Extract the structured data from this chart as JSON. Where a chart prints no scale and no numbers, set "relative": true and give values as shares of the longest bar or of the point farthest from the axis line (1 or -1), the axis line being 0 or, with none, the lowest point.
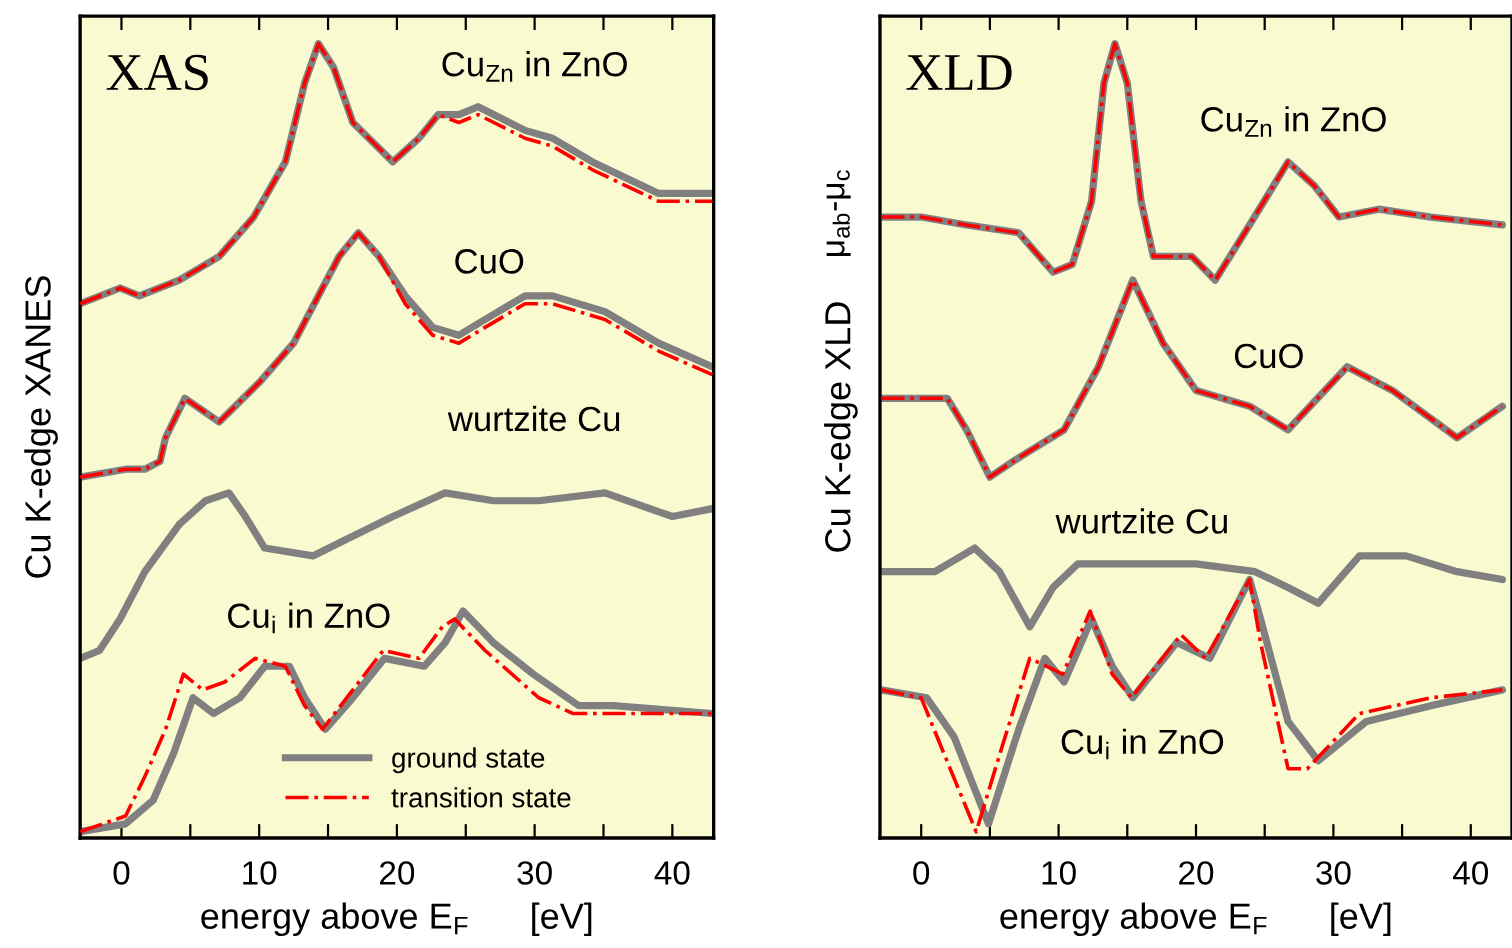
{
  "chart_data": [
    {
      "type": "line",
      "relative": true,
      "xlabel": "energy above E$_{F}$      [eV]",
      "ylabel": "Cu K-edge XANES",
      "xlim": [
        -3,
        43
      ],
      "xticks": [
        0,
        {
          "value": 5,
          "label": null
        },
        10,
        {
          "value": 15,
          "label": null
        },
        20,
        {
          "value": 25,
          "label": null
        },
        30,
        {
          "value": 35,
          "label": null
        },
        40
      ],
      "grid": false,
      "legend": "bottom",
      "annotations": [
        "XAS",
        "Cu$_{Zn}$ in ZnO",
        "CuO",
        "wurtzite Cu",
        "Cu$_{i}$ in ZnO"
      ],
      "series": [
        {
          "color": "#808080",
          "line_style": "solid",
          "x": [
            -3.0,
            -0.1,
            1.3,
            4.2,
            7.1,
            9.6,
            11.9,
            13.3,
            14.3,
            15.4,
            16.8,
            19.7,
            21.6,
            23.0,
            24.5,
            25.9,
            29.3,
            31.3,
            34.2,
            39.0,
            42.9
          ],
          "values": [
            0.67,
            0.69,
            0.68,
            0.7,
            0.73,
            0.78,
            0.85,
            0.95,
            1.0,
            0.97,
            0.9,
            0.85,
            0.88,
            0.91,
            0.91,
            0.92,
            0.89,
            0.88,
            0.85,
            0.81,
            0.81
          ]
        },
        {
          "color": "#ff0000",
          "line_style": "dashdot",
          "x": [
            -3.0,
            -0.1,
            1.3,
            4.2,
            7.1,
            9.6,
            11.9,
            13.3,
            14.3,
            15.4,
            16.8,
            19.7,
            21.6,
            23.0,
            24.5,
            25.9,
            29.3,
            31.3,
            34.2,
            39.0,
            42.9
          ],
          "values": [
            0.67,
            0.69,
            0.68,
            0.7,
            0.73,
            0.78,
            0.85,
            0.95,
            1.0,
            0.97,
            0.9,
            0.85,
            0.88,
            0.91,
            0.9,
            0.91,
            0.88,
            0.87,
            0.84,
            0.8,
            0.8
          ]
        },
        {
          "color": "#808080",
          "line_style": "solid",
          "x": [
            -3.0,
            0.3,
            1.7,
            2.8,
            3.2,
            4.6,
            7.1,
            10.0,
            12.5,
            14.3,
            15.8,
            17.2,
            18.7,
            20.6,
            22.6,
            24.5,
            26.4,
            29.3,
            31.3,
            35.1,
            39.0,
            42.9
          ],
          "values": [
            0.45,
            0.46,
            0.46,
            0.47,
            0.5,
            0.55,
            0.52,
            0.57,
            0.62,
            0.68,
            0.73,
            0.76,
            0.73,
            0.68,
            0.64,
            0.63,
            0.65,
            0.68,
            0.68,
            0.66,
            0.62,
            0.59
          ]
        },
        {
          "color": "#ff0000",
          "line_style": "dashdot",
          "x": [
            -3.0,
            0.3,
            1.7,
            2.8,
            3.2,
            4.6,
            7.1,
            10.0,
            12.5,
            14.3,
            15.8,
            17.2,
            18.7,
            20.6,
            22.6,
            24.5,
            26.4,
            29.3,
            31.3,
            35.1,
            39.0,
            42.9
          ],
          "values": [
            0.45,
            0.46,
            0.46,
            0.47,
            0.5,
            0.55,
            0.52,
            0.57,
            0.62,
            0.68,
            0.73,
            0.76,
            0.73,
            0.67,
            0.63,
            0.62,
            0.64,
            0.67,
            0.67,
            0.65,
            0.61,
            0.58
          ]
        },
        {
          "color": "#808080",
          "line_style": "solid",
          "x": [
            -3.0,
            -1.6,
            -0.1,
            1.7,
            4.2,
            6.1,
            7.8,
            9.0,
            10.4,
            13.9,
            16.2,
            19.7,
            23.5,
            27.0,
            30.3,
            35.1,
            40.0,
            42.9
          ],
          "values": [
            0.22,
            0.23,
            0.27,
            0.33,
            0.39,
            0.42,
            0.43,
            0.4,
            0.36,
            0.35,
            0.37,
            0.4,
            0.43,
            0.42,
            0.42,
            0.43,
            0.4,
            0.41
          ]
        },
        {
          "name": "ground state",
          "color": "#808080",
          "line_style": "solid",
          "x": [
            -3.0,
            0.3,
            2.3,
            3.8,
            5.2,
            6.7,
            8.6,
            10.4,
            12.2,
            13.3,
            14.8,
            16.8,
            19.1,
            22.0,
            23.5,
            24.8,
            27.0,
            29.9,
            33.2,
            35.7,
            42.9
          ],
          "values": [
            0.0,
            0.01,
            0.04,
            0.1,
            0.17,
            0.15,
            0.17,
            0.21,
            0.21,
            0.17,
            0.13,
            0.17,
            0.22,
            0.21,
            0.24,
            0.28,
            0.24,
            0.2,
            0.16,
            0.16,
            0.15
          ]
        },
        {
          "name": "transition state",
          "color": "#ff0000",
          "line_style": "dashdot",
          "x": [
            -3.0,
            0.3,
            1.7,
            3.2,
            4.5,
            5.9,
            7.5,
            9.7,
            11.9,
            13.3,
            14.6,
            16.8,
            19.0,
            21.6,
            23.3,
            24.2,
            26.4,
            30.3,
            32.8,
            36.1,
            42.9
          ],
          "values": [
            0.0,
            0.02,
            0.07,
            0.13,
            0.2,
            0.18,
            0.19,
            0.22,
            0.21,
            0.16,
            0.13,
            0.18,
            0.23,
            0.22,
            0.26,
            0.27,
            0.23,
            0.17,
            0.15,
            0.15,
            0.15
          ]
        }
      ]
    },
    {
      "type": "line",
      "relative": true,
      "xlabel": "energy above E$_{F}$      [eV]",
      "ylabel": "Cu K-edge XLD",
      "xlim": [
        -3,
        43
      ],
      "xticks": [
        0,
        {
          "value": 5,
          "label": null
        },
        10,
        {
          "value": 15,
          "label": null
        },
        20,
        {
          "value": 25,
          "label": null
        },
        30,
        {
          "value": 35,
          "label": null
        },
        40
      ],
      "grid": false,
      "annotations": [
        "XLD",
        "μ$_{ab}$-μ$_{c}$",
        "Cu$_{Zn}$ in ZnO",
        "CuO",
        "wurtzite Cu",
        "Cu$_{i}$ in ZnO"
      ],
      "series": [
        {
          "color": "#808080",
          "line_style": "solid",
          "x": [
            -2.9,
            0.0,
            3.3,
            7.1,
            9.6,
            11.0,
            12.4,
            13.3,
            14.1,
            15.0,
            16.0,
            16.9,
            18.6,
            19.7,
            21.4,
            23.9,
            26.7,
            28.6,
            30.4,
            33.3,
            37.1,
            42.3
          ],
          "values": [
            0.78,
            0.78,
            0.77,
            0.76,
            0.71,
            0.72,
            0.8,
            0.95,
            1.0,
            0.95,
            0.8,
            0.73,
            0.73,
            0.73,
            0.7,
            0.77,
            0.85,
            0.82,
            0.78,
            0.79,
            0.78,
            0.77
          ]
        },
        {
          "color": "#ff0000",
          "line_style": "dashdot",
          "x": [
            -2.9,
            0.0,
            3.3,
            7.1,
            9.6,
            11.0,
            12.4,
            13.3,
            14.1,
            15.0,
            16.0,
            16.9,
            18.6,
            19.7,
            21.4,
            23.9,
            26.7,
            28.6,
            30.4,
            33.3,
            37.1,
            42.3
          ],
          "values": [
            0.78,
            0.78,
            0.77,
            0.76,
            0.71,
            0.72,
            0.8,
            0.95,
            1.0,
            0.95,
            0.8,
            0.73,
            0.73,
            0.73,
            0.7,
            0.77,
            0.85,
            0.82,
            0.78,
            0.79,
            0.78,
            0.77
          ]
        },
        {
          "color": "#808080",
          "line_style": "solid",
          "x": [
            -2.9,
            1.9,
            3.3,
            5.0,
            6.7,
            7.6,
            10.4,
            12.9,
            15.4,
            17.6,
            20.0,
            23.9,
            26.7,
            31.0,
            34.3,
            39.0,
            42.3
          ],
          "values": [
            0.55,
            0.55,
            0.51,
            0.45,
            0.47,
            0.48,
            0.51,
            0.59,
            0.7,
            0.62,
            0.56,
            0.54,
            0.51,
            0.59,
            0.56,
            0.5,
            0.54
          ]
        },
        {
          "color": "#ff0000",
          "line_style": "dashdot",
          "x": [
            -2.9,
            1.9,
            3.3,
            5.0,
            6.7,
            7.6,
            10.4,
            12.9,
            15.4,
            17.6,
            20.0,
            23.9,
            26.7,
            31.0,
            34.3,
            39.0,
            42.3
          ],
          "values": [
            0.55,
            0.55,
            0.51,
            0.45,
            0.47,
            0.48,
            0.51,
            0.59,
            0.7,
            0.62,
            0.56,
            0.54,
            0.51,
            0.59,
            0.56,
            0.5,
            0.54
          ]
        },
        {
          "color": "#808080",
          "line_style": "solid",
          "x": [
            -2.9,
            1.0,
            3.9,
            5.7,
            7.9,
            9.6,
            11.4,
            16.1,
            20.0,
            24.3,
            26.7,
            28.9,
            31.9,
            35.3,
            39.0,
            42.3
          ],
          "values": [
            0.33,
            0.33,
            0.36,
            0.33,
            0.26,
            0.31,
            0.34,
            0.34,
            0.34,
            0.33,
            0.31,
            0.29,
            0.35,
            0.35,
            0.33,
            0.32
          ]
        },
        {
          "color": "#808080",
          "line_style": "solid",
          "x": [
            -2.9,
            0.4,
            2.4,
            4.9,
            7.1,
            9.0,
            10.4,
            12.4,
            13.9,
            15.4,
            18.6,
            21.0,
            23.9,
            24.7,
            26.7,
            28.9,
            32.4,
            37.1,
            42.3
          ],
          "values": [
            0.18,
            0.17,
            0.12,
            0.01,
            0.13,
            0.22,
            0.19,
            0.27,
            0.21,
            0.17,
            0.24,
            0.22,
            0.32,
            0.27,
            0.14,
            0.09,
            0.14,
            0.16,
            0.18
          ]
        },
        {
          "color": "#ff0000",
          "line_style": "dashdot",
          "x": [
            -2.9,
            0.0,
            1.4,
            4.0,
            6.1,
            7.9,
            10.3,
            12.3,
            13.9,
            15.3,
            18.9,
            20.7,
            23.9,
            24.7,
            26.7,
            28.1,
            31.9,
            37.1,
            42.3
          ],
          "values": [
            0.18,
            0.17,
            0.11,
            0.0,
            0.12,
            0.22,
            0.2,
            0.28,
            0.2,
            0.17,
            0.25,
            0.22,
            0.32,
            0.24,
            0.08,
            0.08,
            0.15,
            0.17,
            0.18
          ]
        }
      ]
    }
  ]
}
